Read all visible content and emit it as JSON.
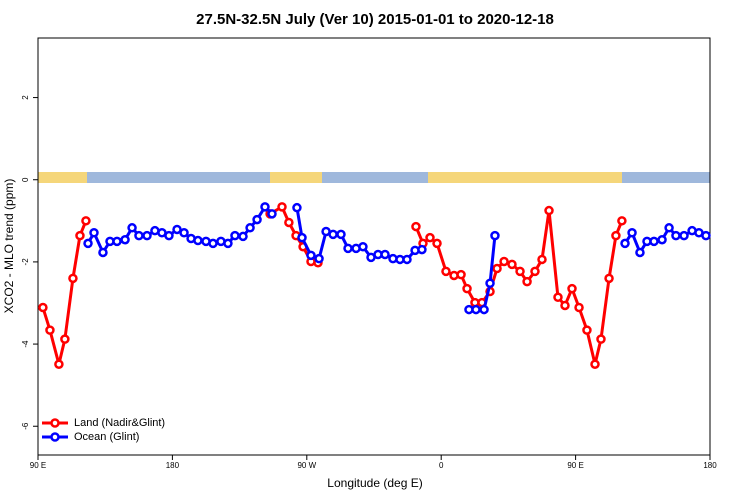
{
  "chart_data": {
    "type": "line",
    "title": "27.5N-32.5N July (Ver 10)   2015-01-01 to 2020-12-18",
    "x_label": "Longitude (deg E)",
    "y_label": "XCO2 - MLO trend (ppm)",
    "xlim": [
      90,
      540
    ],
    "ylim": [
      -6.7,
      3.45
    ],
    "xticks": [
      {
        "value": 90,
        "label": "90 E"
      },
      180,
      {
        "value": 270,
        "label": "90 W"
      },
      {
        "value": 360,
        "label": "0"
      },
      {
        "value": 450,
        "label": "90 E"
      },
      {
        "value": 540,
        "label": "180"
      }
    ],
    "yticks": [
      -6,
      -4,
      -2,
      0,
      2
    ],
    "legend": "bottom-left",
    "grid": false,
    "series": [
      {
        "name": "Land (Nadir&Glint)",
        "color": "#ff0000",
        "x": [
          93.3,
          98,
          104,
          108,
          113.4,
          118.1,
          122.1,
          183,
          245.4,
          253.4,
          258,
          262.8,
          267.5,
          272.8,
          277.5,
          300,
          343.1,
          347.8,
          352.5,
          357.2,
          363.2,
          368.6,
          373.3,
          377.3,
          382.6,
          387.3,
          392.7,
          397.4,
          402.1,
          407.4,
          412.8,
          417.5,
          422.8,
          427.5,
          432.2,
          438.2,
          442.9,
          447.6,
          452.3,
          457.6,
          463,
          467,
          472.4,
          477,
          481
        ],
        "values": [
          -3.11,
          -3.66,
          -4.49,
          -3.88,
          -2.4,
          -1.36,
          -1.0,
          null,
          -0.83,
          -0.66,
          -1.04,
          -1.36,
          -1.63,
          -1.99,
          -2.02,
          null,
          -1.14,
          -1.55,
          -1.41,
          -1.55,
          -2.23,
          -2.33,
          -2.31,
          -2.65,
          -2.99,
          -2.99,
          -2.72,
          -2.16,
          -1.99,
          -2.06,
          -2.23,
          -2.48,
          -2.23,
          -1.94,
          -0.75,
          -2.86,
          -3.06,
          -2.65,
          -3.11,
          -3.66,
          -4.49,
          -3.88,
          -2.4,
          -1.36,
          -1.0
        ]
      },
      {
        "name": "Ocean (Glint)",
        "color": "#0000ff",
        "x": [
          123.5,
          127.5,
          133.5,
          138.2,
          142.9,
          148.3,
          153,
          157.6,
          163,
          168.3,
          173,
          177.7,
          183.1,
          187.8,
          192.5,
          197.1,
          202.5,
          207.2,
          212.5,
          217.2,
          221.9,
          227.3,
          232,
          236.7,
          242,
          246.7,
          255,
          263.4,
          266.8,
          272.8,
          278.2,
          282.9,
          287.6,
          292.9,
          297.6,
          303,
          307.6,
          313,
          317.7,
          322.4,
          327.7,
          332.4,
          337.1,
          342.5,
          347.1,
          360,
          378.6,
          383.3,
          388.7,
          392.7,
          396,
          440,
          483.1,
          487.8,
          493.1,
          497.8,
          502.5,
          507.9,
          512.6,
          517.2,
          522.6,
          528,
          532.6,
          537.3
        ],
        "values": [
          -1.55,
          -1.29,
          -1.77,
          -1.5,
          -1.5,
          -1.46,
          -1.17,
          -1.36,
          -1.36,
          -1.24,
          -1.29,
          -1.36,
          -1.21,
          -1.29,
          -1.43,
          -1.48,
          -1.5,
          -1.55,
          -1.5,
          -1.55,
          -1.36,
          -1.38,
          -1.17,
          -0.97,
          -0.66,
          -0.83,
          null,
          -0.68,
          -1.41,
          -1.84,
          -1.92,
          -1.26,
          -1.33,
          -1.33,
          -1.67,
          -1.67,
          -1.63,
          -1.89,
          -1.82,
          -1.82,
          -1.92,
          -1.94,
          -1.94,
          -1.72,
          -1.7,
          null,
          -3.16,
          -3.16,
          -3.16,
          -2.52,
          -1.36,
          null,
          -1.55,
          -1.29,
          -1.77,
          -1.5,
          -1.5,
          -1.46,
          -1.17,
          -1.36,
          -1.36,
          -1.24,
          -1.29,
          -1.36
        ]
      }
    ]
  }
}
